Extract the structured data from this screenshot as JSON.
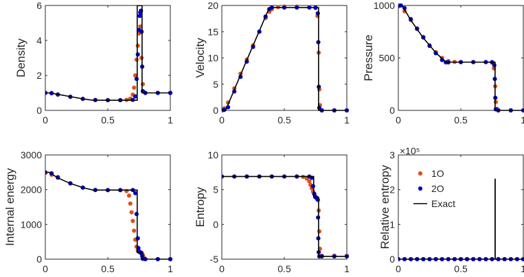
{
  "colors": {
    "first_order": "#D95319",
    "second_order": "#0000CC",
    "exact": "#000000",
    "axis": "#262626"
  },
  "legend": {
    "entries": [
      {
        "label": "1O",
        "marker": "dot",
        "color": "#D95319"
      },
      {
        "label": "2O",
        "marker": "dot",
        "color": "#0000CC"
      },
      {
        "label": "Exact",
        "marker": "line",
        "color": "#000000"
      }
    ],
    "placement": "upper-middle of relative entropy panel"
  },
  "chart_data": [
    {
      "type": "scatter",
      "id": "density",
      "ylabel": "Density",
      "xlim": [
        0,
        1
      ],
      "ylim": [
        0,
        6
      ],
      "xticks": [
        0,
        0.5,
        1
      ],
      "xtick_labels": [
        "0",
        "0.5",
        "1"
      ],
      "yticks": [
        0,
        2,
        4,
        6
      ],
      "ytick_labels": [
        "0",
        "2",
        "4",
        "6"
      ],
      "exponent": "",
      "exact": {
        "x": [
          0,
          0.03,
          0.1,
          0.2,
          0.3,
          0.38,
          0.5,
          0.6,
          0.7,
          0.735,
          0.735,
          0.774,
          0.774,
          1
        ],
        "y": [
          1,
          1,
          0.92,
          0.79,
          0.66,
          0.58,
          0.58,
          0.58,
          0.58,
          0.58,
          5.99,
          5.99,
          1,
          1
        ]
      },
      "series": [
        {
          "name": "1O",
          "x": [
            0,
            0.05,
            0.1,
            0.2,
            0.3,
            0.4,
            0.5,
            0.6,
            0.65,
            0.68,
            0.7,
            0.71,
            0.72,
            0.73,
            0.74,
            0.75,
            0.76,
            0.77,
            0.78,
            0.8,
            0.9,
            1
          ],
          "y": [
            1,
            0.98,
            0.9,
            0.77,
            0.66,
            0.6,
            0.59,
            0.59,
            0.6,
            0.67,
            0.9,
            1.3,
            2.0,
            2.9,
            3.7,
            4.4,
            4.8,
            3.0,
            1.5,
            1,
            1,
            1
          ]
        },
        {
          "name": "2O",
          "x": [
            0,
            0.05,
            0.1,
            0.2,
            0.3,
            0.4,
            0.5,
            0.6,
            0.7,
            0.72,
            0.73,
            0.74,
            0.75,
            0.755,
            0.76,
            0.765,
            0.77,
            0.775,
            0.78,
            0.8,
            0.9,
            1
          ],
          "y": [
            1,
            0.99,
            0.91,
            0.78,
            0.66,
            0.59,
            0.58,
            0.58,
            0.6,
            0.8,
            1.8,
            3.2,
            4.6,
            5.4,
            5.6,
            5.7,
            4.5,
            2.5,
            1.1,
            1,
            1,
            1
          ]
        }
      ]
    },
    {
      "type": "scatter",
      "id": "velocity",
      "ylabel": "Velocity",
      "xlim": [
        0,
        1
      ],
      "ylim": [
        0,
        20
      ],
      "xticks": [
        0,
        0.5,
        1
      ],
      "xtick_labels": [
        "0",
        "0.5",
        "1"
      ],
      "yticks": [
        0,
        5,
        10,
        15,
        20
      ],
      "ytick_labels": [
        "0",
        "5",
        "10",
        "15",
        "20"
      ],
      "exponent": "",
      "exact": {
        "x": [
          0,
          0.03,
          0.2,
          0.38,
          0.5,
          0.6,
          0.7,
          0.774,
          0.774,
          1
        ],
        "y": [
          0,
          0,
          9.6,
          19.6,
          19.6,
          19.6,
          19.6,
          19.6,
          0,
          0
        ]
      },
      "series": [
        {
          "name": "1O",
          "x": [
            0,
            0.02,
            0.05,
            0.1,
            0.15,
            0.2,
            0.25,
            0.3,
            0.35,
            0.38,
            0.4,
            0.45,
            0.5,
            0.6,
            0.7,
            0.75,
            0.765,
            0.775,
            0.78,
            0.785,
            0.8,
            0.9,
            1
          ],
          "y": [
            0,
            0.4,
            1.5,
            4.2,
            7.0,
            9.7,
            12.4,
            15.0,
            17.6,
            18.8,
            19.3,
            19.7,
            19.8,
            19.8,
            19.7,
            19.5,
            18.0,
            11.0,
            4.0,
            1.0,
            0,
            0,
            0
          ]
        },
        {
          "name": "2O",
          "x": [
            0,
            0.02,
            0.05,
            0.1,
            0.15,
            0.2,
            0.25,
            0.3,
            0.35,
            0.38,
            0.4,
            0.5,
            0.6,
            0.7,
            0.75,
            0.768,
            0.772,
            0.776,
            0.78,
            0.8,
            0.9,
            1
          ],
          "y": [
            0,
            0.1,
            0.6,
            3.6,
            6.4,
            9.3,
            12.1,
            15.0,
            17.9,
            19.3,
            19.6,
            19.6,
            19.6,
            19.6,
            19.6,
            18.5,
            13.0,
            4.5,
            0.5,
            0,
            0,
            0
          ]
        }
      ]
    },
    {
      "type": "scatter",
      "id": "pressure",
      "ylabel": "Pressure",
      "xlim": [
        0,
        1
      ],
      "ylim": [
        0,
        1000
      ],
      "xticks": [
        0,
        0.5,
        1
      ],
      "xtick_labels": [
        "0",
        "0.5",
        "1"
      ],
      "yticks": [
        0,
        500,
        1000
      ],
      "ytick_labels": [
        "0",
        "500",
        "1000"
      ],
      "exponent": "",
      "exact": {
        "x": [
          0,
          0.03,
          0.1,
          0.2,
          0.3,
          0.38,
          0.5,
          0.6,
          0.7,
          0.774,
          0.774,
          1
        ],
        "y": [
          1000,
          1000,
          860,
          690,
          550,
          460,
          460,
          460,
          460,
          460,
          0.01,
          0.01
        ]
      },
      "series": [
        {
          "name": "1O",
          "x": [
            0,
            0.05,
            0.1,
            0.15,
            0.2,
            0.25,
            0.3,
            0.35,
            0.4,
            0.45,
            0.5,
            0.6,
            0.7,
            0.75,
            0.765,
            0.775,
            0.78,
            0.79,
            0.8,
            0.9,
            1
          ],
          "y": [
            990,
            945,
            860,
            775,
            700,
            620,
            555,
            500,
            470,
            462,
            460,
            460,
            460,
            455,
            400,
            230,
            80,
            15,
            0,
            0,
            0
          ]
        },
        {
          "name": "2O",
          "x": [
            0,
            0.02,
            0.05,
            0.1,
            0.15,
            0.2,
            0.25,
            0.3,
            0.35,
            0.38,
            0.4,
            0.5,
            0.6,
            0.7,
            0.75,
            0.768,
            0.772,
            0.776,
            0.78,
            0.8,
            0.9,
            1
          ],
          "y": [
            1000,
            1000,
            975,
            870,
            780,
            695,
            615,
            545,
            480,
            458,
            458,
            460,
            460,
            460,
            460,
            430,
            300,
            120,
            10,
            0,
            0,
            0
          ]
        }
      ]
    },
    {
      "type": "scatter",
      "id": "internal-energy",
      "ylabel": "Internal energy",
      "xlim": [
        0,
        1
      ],
      "ylim": [
        0,
        3000
      ],
      "xticks": [
        0,
        0.5,
        1
      ],
      "xtick_labels": [
        "0",
        "0.5",
        "1"
      ],
      "yticks": [
        0,
        1000,
        2000,
        3000
      ],
      "ytick_labels": [
        "0",
        "1000",
        "2000",
        "3000"
      ],
      "exponent": "",
      "exact": {
        "x": [
          0,
          0.03,
          0.1,
          0.2,
          0.3,
          0.38,
          0.5,
          0.6,
          0.735,
          0.735,
          0.774,
          0.774,
          1
        ],
        "y": [
          2500,
          2500,
          2340,
          2180,
          2060,
          1990,
          1990,
          1990,
          1990,
          190,
          190,
          0.01,
          0.01
        ]
      },
      "series": [
        {
          "name": "1O",
          "x": [
            0,
            0.05,
            0.1,
            0.2,
            0.3,
            0.4,
            0.5,
            0.6,
            0.65,
            0.67,
            0.68,
            0.69,
            0.7,
            0.71,
            0.72,
            0.73,
            0.74,
            0.75,
            0.76,
            0.77,
            0.78,
            0.79,
            0.8,
            0.9,
            1
          ],
          "y": [
            2480,
            2430,
            2340,
            2190,
            2060,
            1995,
            1985,
            1985,
            1960,
            1830,
            1600,
            1350,
            1100,
            820,
            560,
            360,
            250,
            215,
            200,
            180,
            120,
            40,
            0,
            0,
            0
          ]
        },
        {
          "name": "2O",
          "x": [
            0,
            0.05,
            0.1,
            0.2,
            0.3,
            0.4,
            0.5,
            0.6,
            0.7,
            0.72,
            0.73,
            0.74,
            0.745,
            0.75,
            0.76,
            0.765,
            0.77,
            0.775,
            0.78,
            0.8,
            0.9,
            1
          ],
          "y": [
            2500,
            2470,
            2360,
            2180,
            2060,
            1990,
            1990,
            1990,
            1990,
            1900,
            1300,
            600,
            320,
            220,
            190,
            190,
            170,
            90,
            10,
            0,
            0,
            0
          ]
        }
      ]
    },
    {
      "type": "scatter",
      "id": "entropy",
      "ylabel": "Entropy",
      "xlim": [
        0,
        1
      ],
      "ylim": [
        -5,
        10
      ],
      "xticks": [
        0,
        0.5,
        1
      ],
      "xtick_labels": [
        "0",
        "0.5",
        "1"
      ],
      "yticks": [
        -5,
        0,
        5,
        10
      ],
      "ytick_labels": [
        "-5",
        "0",
        "5",
        "10"
      ],
      "exponent": "",
      "exact": {
        "x": [
          0,
          0.5,
          0.735,
          0.735,
          0.774,
          0.774,
          1
        ],
        "y": [
          6.9,
          6.9,
          6.9,
          3.9,
          3.9,
          -4.6,
          -4.6
        ]
      },
      "series": [
        {
          "name": "1O",
          "x": [
            0,
            0.1,
            0.2,
            0.3,
            0.4,
            0.5,
            0.6,
            0.65,
            0.68,
            0.7,
            0.71,
            0.72,
            0.73,
            0.74,
            0.75,
            0.76,
            0.77,
            0.775,
            0.78,
            0.785,
            0.8,
            0.9,
            1
          ],
          "y": [
            6.9,
            6.9,
            6.9,
            6.9,
            6.9,
            6.9,
            6.9,
            6.85,
            6.6,
            6.2,
            5.7,
            5.2,
            4.7,
            4.3,
            4.0,
            3.8,
            3.5,
            2.0,
            -1.0,
            -3.5,
            -4.5,
            -4.5,
            -4.5
          ]
        },
        {
          "name": "2O",
          "x": [
            0,
            0.1,
            0.2,
            0.3,
            0.4,
            0.5,
            0.6,
            0.7,
            0.72,
            0.73,
            0.74,
            0.75,
            0.76,
            0.765,
            0.77,
            0.772,
            0.775,
            0.78,
            0.8,
            0.9,
            1
          ],
          "y": [
            6.9,
            6.9,
            6.9,
            6.9,
            6.9,
            6.9,
            6.9,
            6.9,
            6.7,
            5.5,
            4.4,
            3.9,
            3.8,
            3.6,
            1.0,
            -2.0,
            -4.0,
            -4.6,
            -4.6,
            -4.6,
            -4.6
          ]
        }
      ]
    },
    {
      "type": "scatter",
      "id": "relative-entropy",
      "ylabel": "Relative entropy",
      "xlim": [
        0,
        1
      ],
      "ylim": [
        0,
        3
      ],
      "xticks": [
        0,
        0.5,
        1
      ],
      "xtick_labels": [
        "0",
        "0.5",
        "1"
      ],
      "yticks": [
        0,
        1,
        2,
        3
      ],
      "ytick_labels": [
        "0",
        "1",
        "2",
        "3"
      ],
      "exponent": "×10⁵",
      "exact": {
        "x": [
          0,
          0.774,
          0.774,
          0.775,
          0.775,
          1
        ],
        "y": [
          0,
          0,
          2.3,
          2.3,
          0,
          0
        ]
      },
      "series": [
        {
          "name": "1O",
          "x": [
            0,
            0.05,
            0.1,
            0.15,
            0.2,
            0.25,
            0.3,
            0.35,
            0.4,
            0.45,
            0.5,
            0.55,
            0.6,
            0.65,
            0.7,
            0.75,
            0.8,
            0.85,
            0.9,
            0.95,
            1
          ],
          "y": [
            0,
            0,
            0,
            0,
            0,
            0,
            0,
            0,
            0,
            0,
            0,
            0,
            0,
            0,
            0,
            0,
            0,
            0,
            0,
            0,
            0
          ]
        },
        {
          "name": "2O",
          "x": [
            0,
            0.05,
            0.1,
            0.15,
            0.2,
            0.25,
            0.3,
            0.35,
            0.4,
            0.45,
            0.5,
            0.55,
            0.6,
            0.65,
            0.7,
            0.75,
            0.8,
            0.85,
            0.9,
            0.95,
            1
          ],
          "y": [
            0,
            0,
            0,
            0,
            0,
            0,
            0,
            0,
            0,
            0,
            0,
            0,
            0,
            0,
            0,
            0,
            0,
            0,
            0,
            0,
            0
          ]
        }
      ]
    }
  ]
}
